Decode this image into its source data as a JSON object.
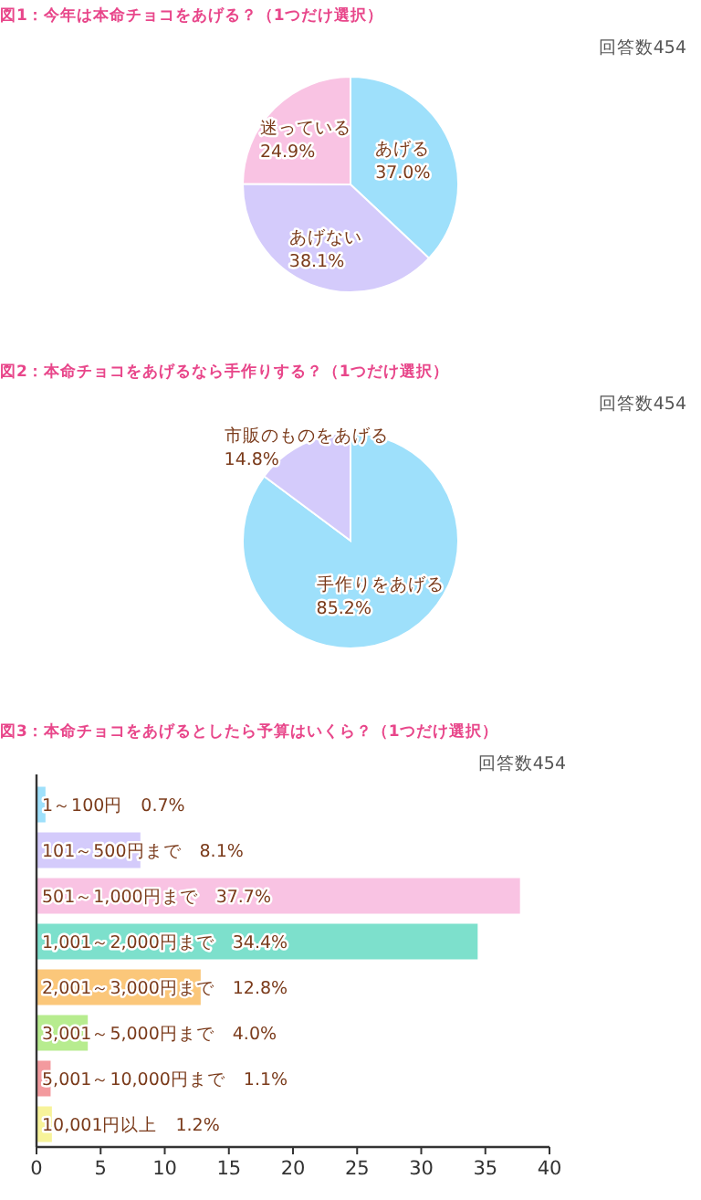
{
  "chart_data": [
    {
      "type": "pie",
      "title": "図1：今年は本命チョコをあげる？（1つだけ選択）",
      "subtitle": "回答数454",
      "categories": [
        "あげる",
        "あげない",
        "迷っている"
      ],
      "values": [
        37.0,
        38.1,
        24.9
      ],
      "value_labels": [
        "37.0%",
        "38.1%",
        "24.9%"
      ],
      "colors": [
        "#9ee0fb",
        "#d4cbfb",
        "#f9c3e3"
      ]
    },
    {
      "type": "pie",
      "title": "図2：本命チョコをあげるなら手作りする？（1つだけ選択）",
      "subtitle": "回答数454",
      "categories": [
        "手作りをあげる",
        "市販のものをあげる"
      ],
      "values": [
        85.2,
        14.8
      ],
      "value_labels": [
        "85.2%",
        "14.8%"
      ],
      "colors": [
        "#9ee0fb",
        "#d4cbfb"
      ]
    },
    {
      "type": "bar",
      "orientation": "horizontal",
      "title": "図3：本命チョコをあげるとしたら予算はいくら？（1つだけ選択）",
      "subtitle": "回答数454",
      "categories": [
        "1～100円",
        "101～500円まで",
        "501～1,000円まで",
        "1,001～2,000円まで",
        "2,001～3,000円まで",
        "3,001～5,000円まで",
        "5,001～10,000円まで",
        "10,001円以上"
      ],
      "values": [
        0.7,
        8.1,
        37.7,
        34.4,
        12.8,
        4.0,
        1.1,
        1.2
      ],
      "value_labels": [
        "0.7%",
        "8.1%",
        "37.7%",
        "34.4%",
        "12.8%",
        "4.0%",
        "1.1%",
        "1.2%"
      ],
      "colors": [
        "#9ee0fb",
        "#d4cbfb",
        "#f9c3e3",
        "#7de0cc",
        "#fbc77a",
        "#b7ec8f",
        "#f39a9e",
        "#f7f39a"
      ],
      "xlim": [
        0,
        40
      ],
      "xticks": [
        0,
        5,
        10,
        15,
        20,
        25,
        30,
        35,
        40
      ],
      "grid": false
    }
  ]
}
